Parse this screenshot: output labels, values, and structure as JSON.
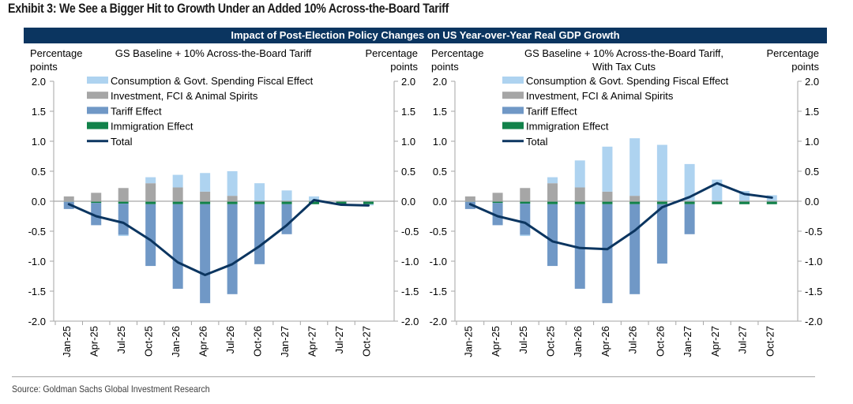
{
  "exhibit_title": "Exhibit 3: We See a Bigger Hit to Growth Under an Added 10% Across-the-Board Tariff",
  "banner_title": "Impact of Post-Election Policy Changes on US Year-over-Year Real GDP Growth",
  "source": "Source: Goldman Sachs Global Investment Research",
  "colors": {
    "banner": "#0b3560",
    "fiscal": "#aed3f0",
    "investment": "#a6a6a6",
    "tariff": "#7098c6",
    "immigration": "#12824a",
    "total": "#0b3560",
    "axis": "#a6a6a6"
  },
  "chart_data": [
    {
      "type": "bar",
      "stacked": true,
      "title": "GS Baseline + 10% Across-the-Board Tariff",
      "ylabel_left": "Percentage points",
      "ylabel_right": "Percentage points",
      "ylim": [
        -2.0,
        2.0
      ],
      "yticks": [
        "2.0",
        "1.5",
        "1.0",
        "0.5",
        "0.0",
        "-0.5",
        "-1.0",
        "-1.5",
        "-2.0"
      ],
      "grid": false,
      "legend_position": "top-left",
      "categories": [
        "Jan-25",
        "Apr-25",
        "Jul-25",
        "Oct-25",
        "Jan-26",
        "Apr-26",
        "Jul-26",
        "Oct-26",
        "Jan-27",
        "Apr-27",
        "Jul-27",
        "Oct-27"
      ],
      "series": [
        {
          "name": "Consumption & Govt. Spending Fiscal Effect",
          "kind": "bar",
          "color_key": "fiscal",
          "values": [
            0.0,
            0.0,
            -0.02,
            0.1,
            0.21,
            0.31,
            0.41,
            0.3,
            0.18,
            0.08,
            0.0,
            -0.02
          ]
        },
        {
          "name": "Investment, FCI & Animal Spirits",
          "kind": "bar",
          "color_key": "investment",
          "values": [
            0.08,
            0.14,
            0.22,
            0.3,
            0.23,
            0.16,
            0.09,
            0.0,
            0.0,
            0.0,
            0.0,
            0.0
          ]
        },
        {
          "name": "Tariff Effect",
          "kind": "bar",
          "color_key": "tariff",
          "values": [
            -0.12,
            -0.37,
            -0.52,
            -1.03,
            -1.41,
            -1.65,
            -1.5,
            -1.0,
            -0.5,
            0.0,
            0.0,
            0.0
          ]
        },
        {
          "name": "Immigration Effect",
          "kind": "bar",
          "color_key": "immigration",
          "values": [
            -0.01,
            -0.03,
            -0.04,
            -0.05,
            -0.05,
            -0.05,
            -0.05,
            -0.05,
            -0.05,
            -0.05,
            -0.05,
            -0.05
          ]
        },
        {
          "name": "Total",
          "kind": "line",
          "color_key": "total",
          "values": [
            -0.05,
            -0.25,
            -0.36,
            -0.65,
            -1.02,
            -1.23,
            -1.05,
            -0.75,
            -0.4,
            0.02,
            -0.06,
            -0.07
          ]
        }
      ]
    },
    {
      "type": "bar",
      "stacked": true,
      "title": "GS Baseline + 10% Across-the-Board Tariff, With Tax Cuts",
      "title_lines": [
        "GS Baseline + 10% Across-the-Board Tariff,",
        "With Tax Cuts"
      ],
      "ylabel_left": "Percentage points",
      "ylabel_right": "Percentage points",
      "ylim": [
        -2.0,
        2.0
      ],
      "yticks": [
        "2.0",
        "1.5",
        "1.0",
        "0.5",
        "0.0",
        "-0.5",
        "-1.0",
        "-1.5",
        "-2.0"
      ],
      "grid": false,
      "legend_position": "top-left",
      "categories": [
        "Jan-25",
        "Apr-25",
        "Jul-25",
        "Oct-25",
        "Jan-26",
        "Apr-26",
        "Jul-26",
        "Oct-26",
        "Jan-27",
        "Apr-27",
        "Jul-27",
        "Oct-27"
      ],
      "series": [
        {
          "name": "Consumption & Govt. Spending Fiscal Effect",
          "kind": "bar",
          "color_key": "fiscal",
          "values": [
            0.0,
            0.0,
            -0.02,
            0.1,
            0.45,
            0.75,
            0.96,
            0.93,
            0.62,
            0.36,
            0.17,
            0.1
          ]
        },
        {
          "name": "Investment, FCI & Animal Spirits",
          "kind": "bar",
          "color_key": "investment",
          "values": [
            0.08,
            0.14,
            0.22,
            0.3,
            0.23,
            0.16,
            0.09,
            0.01,
            0.0,
            0.0,
            0.0,
            0.0
          ]
        },
        {
          "name": "Tariff Effect",
          "kind": "bar",
          "color_key": "tariff",
          "values": [
            -0.12,
            -0.37,
            -0.52,
            -1.03,
            -1.41,
            -1.65,
            -1.5,
            -0.99,
            -0.5,
            0.0,
            0.0,
            0.0
          ]
        },
        {
          "name": "Immigration Effect",
          "kind": "bar",
          "color_key": "immigration",
          "values": [
            -0.01,
            -0.03,
            -0.04,
            -0.05,
            -0.05,
            -0.05,
            -0.05,
            -0.05,
            -0.05,
            -0.05,
            -0.05,
            -0.05
          ]
        },
        {
          "name": "Total",
          "kind": "line",
          "color_key": "total",
          "values": [
            -0.05,
            -0.25,
            -0.36,
            -0.67,
            -0.78,
            -0.8,
            -0.49,
            -0.1,
            0.07,
            0.3,
            0.12,
            0.06
          ]
        }
      ]
    }
  ]
}
